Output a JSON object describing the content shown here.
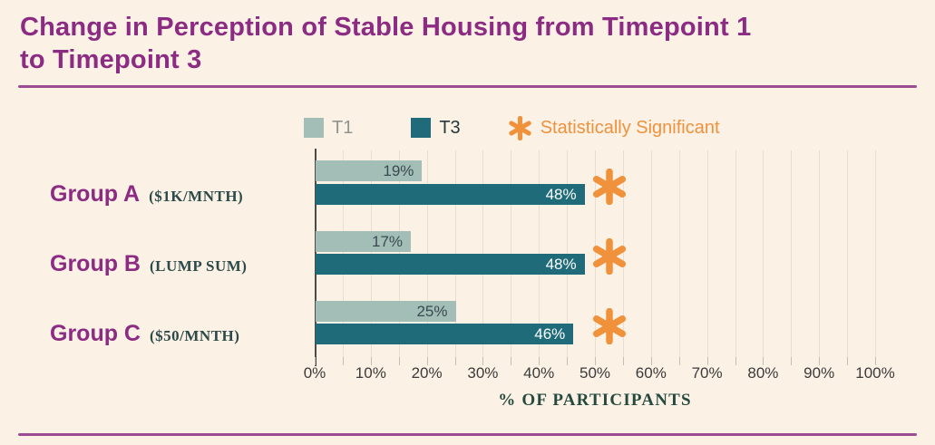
{
  "title": {
    "line1": "Change in Perception of Stable Housing from Timepoint 1",
    "line2": "to Timepoint 3"
  },
  "legend": {
    "t1_label": "T1",
    "t3_label": "T3",
    "significant_label": "Statistically Significant"
  },
  "chart_data": {
    "type": "bar",
    "orientation": "horizontal",
    "title": "Change in Perception of Stable Housing from Timepoint 1 to Timepoint 3",
    "categories": [
      "Group A",
      "Group B",
      "Group C"
    ],
    "category_sublabels": [
      "($1K/MNTH)",
      "(LUMP SUM)",
      "($50/MNTH)"
    ],
    "series": [
      {
        "name": "T1",
        "values": [
          19,
          17,
          25
        ]
      },
      {
        "name": "T3",
        "values": [
          48,
          48,
          46
        ]
      }
    ],
    "value_labels": {
      "t1": [
        "19%",
        "17%",
        "25%"
      ],
      "t3": [
        "48%",
        "48%",
        "46%"
      ]
    },
    "statistically_significant": [
      true,
      true,
      true
    ],
    "xlabel": "% OF PARTICIPANTS",
    "xlim": [
      0,
      100
    ],
    "x_tick_labels": [
      "0%",
      "10%",
      "20%",
      "30%",
      "40%",
      "50%",
      "60%",
      "70%",
      "80%",
      "90%",
      "100%"
    ],
    "grid": "vertical gridlines every 5%",
    "legend_position": "top-center"
  },
  "colors": {
    "background": "#fbf1e5",
    "title": "#8c2b82",
    "divider": "#9b4c93",
    "t1_bar": "#a3beb6",
    "t3_bar": "#1f6b7a",
    "significant": "#f0913c",
    "gridline": "#e8dfd0",
    "sublabel": "#2c4a49",
    "axis_title": "#26493f"
  }
}
